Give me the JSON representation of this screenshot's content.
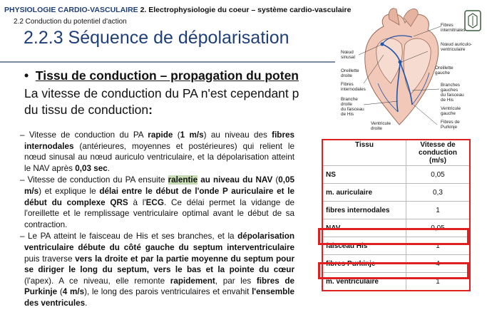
{
  "header": {
    "course": "PHYSIOLOGIE CARDIO-VASCULAIRE",
    "chapter": "2. Electrophysiologie du coeur – système cardio-vasculaire",
    "subsection": "2.2 Conduction du potentiel d'action",
    "title": "2.2.3 Séquence de dépolarisation"
  },
  "bullet": {
    "marker": "•",
    "heading": "Tissu de conduction – propagation du poten",
    "intro_line1": "La vitesse de conduction du PA n'est cependant p",
    "intro_line2_a": "du tissu de conduction",
    "intro_line2_b": ":"
  },
  "body": {
    "p1": [
      "– Vitesse de conduction du PA ",
      "rapide",
      " (",
      "1 m/s",
      ") au niveau des ",
      "fibres internodales",
      " (antérieures, moyennes et postérieures) qui relient le nœud sinusal au nœud auriculo ventriculaire, et la dépolarisation atteint le NAV après ",
      "0,03 sec",
      "."
    ],
    "p2": [
      "– Vitesse de conduction du PA ensuite ",
      "ralentie",
      " au niveau du NAV",
      " (",
      "0,05 m/s",
      ") et explique le ",
      "délai entre le début de l'onde P auriculaire et le début du complexe QRS",
      " à l'",
      "ECG",
      ". Ce délai permet la vidange de l'oreillette et le remplissage ventriculaire optimal avant le début de sa contraction."
    ],
    "p3": [
      "– Le PA atteint le faisceau de His et ses branches, et la ",
      "dépolarisation ventriculaire débute du côté gauche du septum interventriculaire",
      " puis traverse ",
      "vers la droite et par la partie moyenne du septum pour se diriger le long du septum, vers le bas et la pointe du cœur",
      " (l'apex). A ce niveau, elle remonte ",
      "rapidement",
      ", par les ",
      "fibres de Purkinje",
      " (",
      "4 m/s",
      "), le long des parois ventriculaires et envahit ",
      "l'ensemble des ventricules",
      "."
    ]
  },
  "illustration": {
    "labels": [
      "Fibres",
      "internitriales",
      "Nœud auriculo-",
      "ventriculaire",
      "Nœud",
      "sinusal",
      "Oreillette",
      "droite",
      "Oreillette",
      "gauche",
      "Fibres",
      "internodales",
      "Branche",
      "droite",
      "du faisceau",
      "de His",
      "Branches",
      "gauches",
      "du faisceau",
      "de His",
      "Ventricule",
      "gauche",
      "Ventricule",
      "droite",
      "Fibres de",
      "Purkinje"
    ]
  },
  "table": {
    "header_tissue": "Tissu",
    "header_speed_lines": [
      "Vitesse de",
      "conduction",
      "(m/s)"
    ],
    "rows": [
      {
        "tissue": "NS",
        "speed": "0,05"
      },
      {
        "tissue": "m. auriculaire",
        "speed": "0,3"
      },
      {
        "tissue": "fibres internodales",
        "speed": "1"
      },
      {
        "tissue": "NAV",
        "speed": "0,05"
      },
      {
        "tissue": "faisceau His",
        "speed": "1"
      },
      {
        "tissue": "fibres Purkinje",
        "speed": "4"
      },
      {
        "tissue": "m. ventriculaire",
        "speed": "1"
      }
    ]
  },
  "colors": {
    "accent_title": "#1f3f7a",
    "highlight_box": "#e02020",
    "text_highlight": "#c9ddb7",
    "pathway": "#2255aa"
  }
}
